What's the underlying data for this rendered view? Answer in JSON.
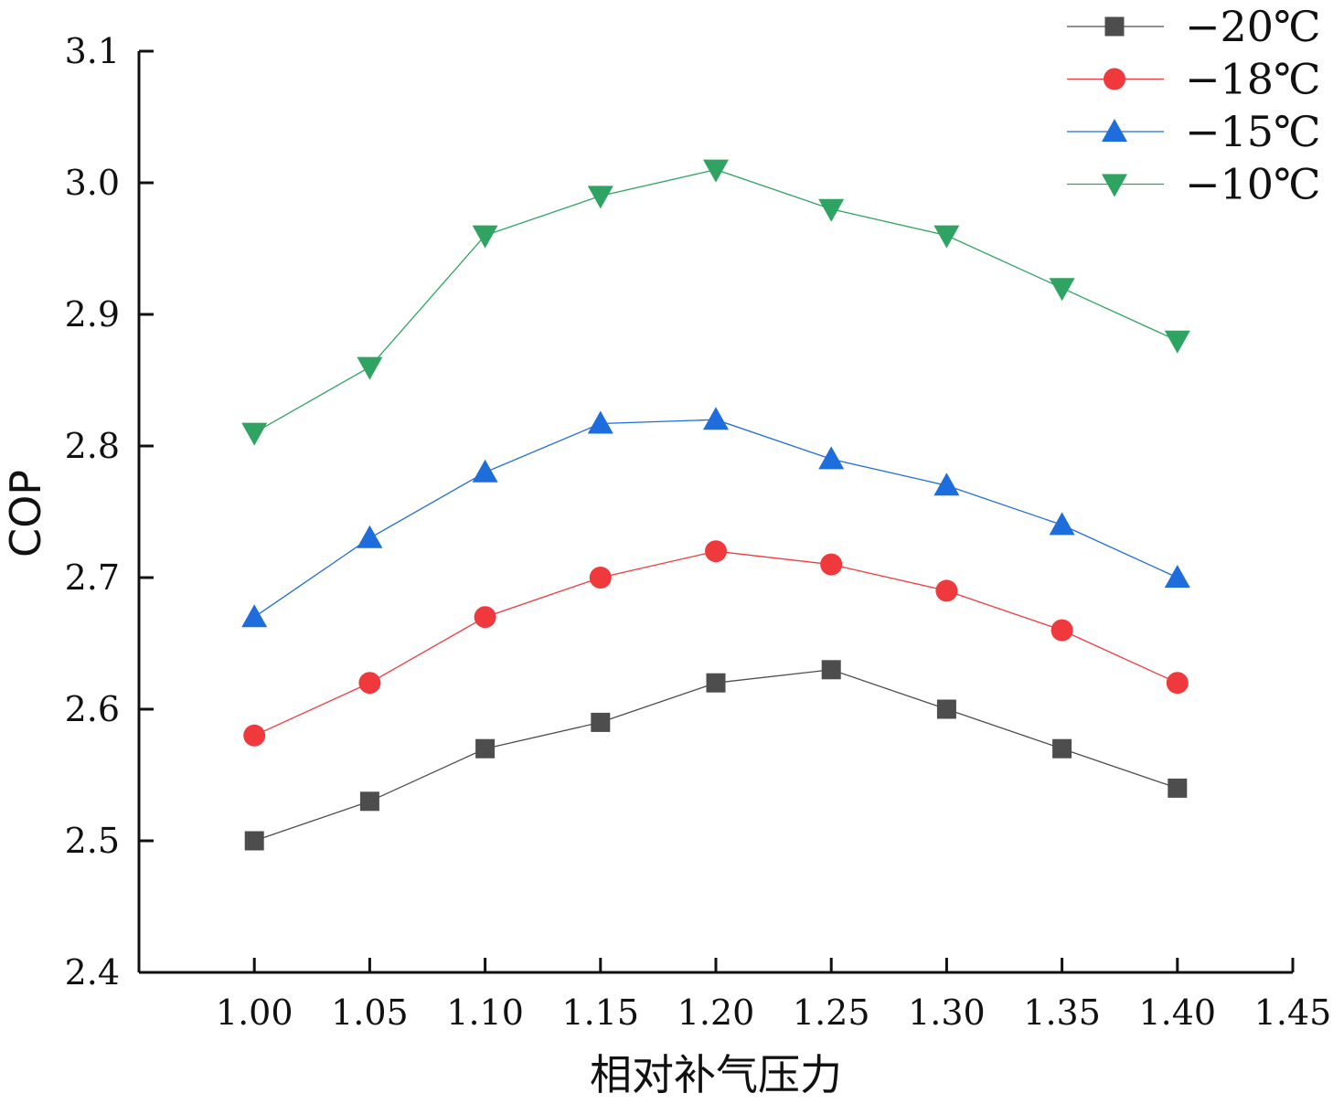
{
  "chart_data": {
    "type": "line",
    "title": "",
    "xlabel": "相对补气压力",
    "ylabel": "COP",
    "x": [
      1.0,
      1.05,
      1.1,
      1.15,
      1.2,
      1.25,
      1.3,
      1.35,
      1.4
    ],
    "xlim": [
      0.95,
      1.45
    ],
    "ylim": [
      2.4,
      3.1
    ],
    "xticks": [
      1.0,
      1.05,
      1.1,
      1.15,
      1.2,
      1.25,
      1.3,
      1.35,
      1.4,
      1.45
    ],
    "xtick_labels": [
      "1.00",
      "1.05",
      "1.10",
      "1.15",
      "1.20",
      "1.25",
      "1.30",
      "1.35",
      "1.40",
      "1.45"
    ],
    "yticks": [
      2.4,
      2.5,
      2.6,
      2.7,
      2.8,
      2.9,
      3.0,
      3.1
    ],
    "ytick_labels": [
      "2.4",
      "2.5",
      "2.6",
      "2.7",
      "2.8",
      "2.9",
      "3.0",
      "3.1"
    ],
    "grid": false,
    "legend_position": "top-right",
    "series": [
      {
        "name": "−20℃",
        "color": "#4d4d4d",
        "marker": "square",
        "values": [
          2.5,
          2.53,
          2.57,
          2.59,
          2.62,
          2.63,
          2.6,
          2.57,
          2.54
        ]
      },
      {
        "name": "−18℃",
        "color": "#f0393c",
        "marker": "circle",
        "values": [
          2.58,
          2.62,
          2.67,
          2.7,
          2.72,
          2.71,
          2.69,
          2.66,
          2.62
        ]
      },
      {
        "name": "−15℃",
        "color": "#1d6ddc",
        "marker": "triangle-up",
        "values": [
          2.67,
          2.73,
          2.78,
          2.817,
          2.82,
          2.79,
          2.77,
          2.74,
          2.7
        ]
      },
      {
        "name": "−10℃",
        "color": "#2fa462",
        "marker": "triangle-down",
        "values": [
          2.81,
          2.86,
          2.96,
          2.99,
          3.01,
          2.98,
          2.96,
          2.92,
          2.88
        ]
      }
    ]
  }
}
